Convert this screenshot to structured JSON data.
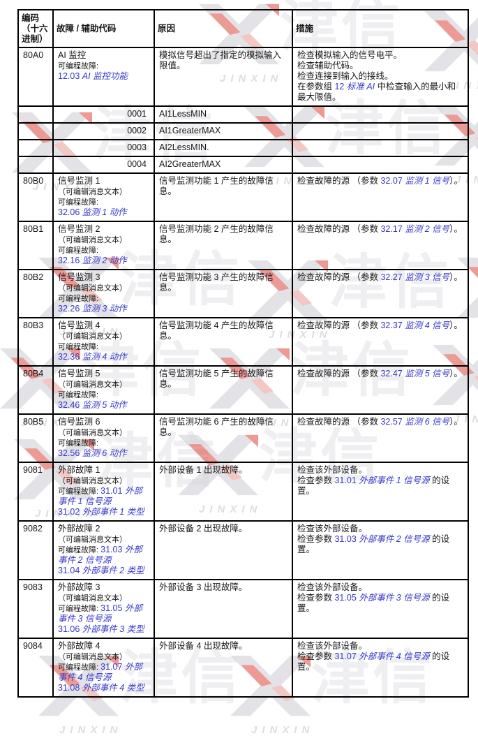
{
  "watermark": {
    "brand_cn": "津信",
    "brand_en": "JINXIN",
    "accent_red": "#e0473d",
    "logo_gray": "#cdcdd4"
  },
  "colors": {
    "link_blue": "#3637ce",
    "text": "#161616",
    "border": "#000000",
    "page_background": "#ffffff"
  },
  "table": {
    "headers": [
      "编码\n（十六\n进制）",
      "故障 / 辅助代码",
      "原因",
      "措施"
    ],
    "rows": [
      {
        "type": "fault",
        "code": "80A0",
        "fault": [
          {
            "t": "AI 监控\n",
            "s": "p"
          },
          {
            "t": "可编程故障:\n",
            "s": "sm"
          },
          {
            "t": "12.03 ",
            "s": "n"
          },
          {
            "t": "AI 监控功能",
            "s": "i"
          }
        ],
        "cause": [
          {
            "t": "模拟信号超出了指定的模拟输入限值。",
            "s": "p"
          }
        ],
        "action": [
          {
            "t": "检查模拟输入的信号电平。\n检查辅助代码。\n检查连接到输入的接线。\n在参数组 ",
            "s": "p"
          },
          {
            "t": "12 ",
            "s": "n"
          },
          {
            "t": "标准 AI",
            "s": "i"
          },
          {
            "t": " 中检查输入的最小和最大限值。",
            "s": "p"
          }
        ]
      },
      {
        "type": "aux",
        "code": "0001",
        "name": "AI1LessMIN"
      },
      {
        "type": "aux",
        "code": "0002",
        "name": "AI1GreaterMAX"
      },
      {
        "type": "aux",
        "code": "0003",
        "name": "AI2LessMIN."
      },
      {
        "type": "aux",
        "code": "0004",
        "name": "AI2GreaterMAX"
      },
      {
        "type": "fault",
        "code": "80B0",
        "fault": [
          {
            "t": "信号监测 1\n",
            "s": "p"
          },
          {
            "t": "（可编辑消息文本）\n可编程故障:\n",
            "s": "sm"
          },
          {
            "t": "32.06 ",
            "s": "n"
          },
          {
            "t": "监测 1 动作",
            "s": "i"
          }
        ],
        "cause": [
          {
            "t": "信号监测功能 1 产生的故障信息。",
            "s": "p"
          }
        ],
        "action": [
          {
            "t": "检查故障的源 （参数 ",
            "s": "p"
          },
          {
            "t": "32.07 ",
            "s": "n"
          },
          {
            "t": "监测 1 信号",
            "s": "i"
          },
          {
            "t": "）。",
            "s": "p"
          }
        ]
      },
      {
        "type": "fault",
        "code": "80B1",
        "fault": [
          {
            "t": "信号监测 2\n",
            "s": "p"
          },
          {
            "t": "（可编辑消息文本）\n可编程故障:\n",
            "s": "sm"
          },
          {
            "t": "32.16 ",
            "s": "n"
          },
          {
            "t": "监测 2 动作",
            "s": "i"
          }
        ],
        "cause": [
          {
            "t": "信号监测功能 2 产生的故障信息。",
            "s": "p"
          }
        ],
        "action": [
          {
            "t": "检查故障的源 （参数 ",
            "s": "p"
          },
          {
            "t": "32.17 ",
            "s": "n"
          },
          {
            "t": "监测 2 信号",
            "s": "i"
          },
          {
            "t": "）。",
            "s": "p"
          }
        ]
      },
      {
        "type": "fault",
        "code": "80B2",
        "fault": [
          {
            "t": "信号监测 3\n",
            "s": "p"
          },
          {
            "t": "（可编辑消息文本）\n可编程故障:\n",
            "s": "sm"
          },
          {
            "t": "32.26 ",
            "s": "n"
          },
          {
            "t": "监测 3 动作",
            "s": "i"
          }
        ],
        "cause": [
          {
            "t": "信号监测功能 3 产生的故障信息。",
            "s": "p"
          }
        ],
        "action": [
          {
            "t": "检查故障的源 （参数 ",
            "s": "p"
          },
          {
            "t": "32.27 ",
            "s": "n"
          },
          {
            "t": "监测 3 信号",
            "s": "i"
          },
          {
            "t": "）。",
            "s": "p"
          }
        ]
      },
      {
        "type": "fault",
        "code": "80B3",
        "fault": [
          {
            "t": "信号监测 4\n",
            "s": "p"
          },
          {
            "t": "（可编辑消息文本）\n可编程故障:\n",
            "s": "sm"
          },
          {
            "t": "32.36 ",
            "s": "n"
          },
          {
            "t": "监测 4 动作",
            "s": "i"
          }
        ],
        "cause": [
          {
            "t": "信号监测功能 4 产生的故障信息。",
            "s": "p"
          }
        ],
        "action": [
          {
            "t": "检查故障的源 （参数 ",
            "s": "p"
          },
          {
            "t": "32.37 ",
            "s": "n"
          },
          {
            "t": "监测 4 信号",
            "s": "i"
          },
          {
            "t": "）。",
            "s": "p"
          }
        ]
      },
      {
        "type": "fault",
        "code": "80B4",
        "fault": [
          {
            "t": "信号监测 5\n",
            "s": "p"
          },
          {
            "t": "（可编辑消息文本）\n可编程故障:\n",
            "s": "sm"
          },
          {
            "t": "32.46 ",
            "s": "n"
          },
          {
            "t": "监测 5 动作",
            "s": "i"
          }
        ],
        "cause": [
          {
            "t": "信号监测功能 5 产生的故障信息。",
            "s": "p"
          }
        ],
        "action": [
          {
            "t": "检查故障的源 （参数 ",
            "s": "p"
          },
          {
            "t": "32.47 ",
            "s": "n"
          },
          {
            "t": "监测 5 信号",
            "s": "i"
          },
          {
            "t": "）。",
            "s": "p"
          }
        ]
      },
      {
        "type": "fault",
        "code": "80B5",
        "fault": [
          {
            "t": "信号监测 6\n",
            "s": "p"
          },
          {
            "t": "（可编辑消息文本）\n可编程故障:\n",
            "s": "sm"
          },
          {
            "t": "32.56 ",
            "s": "n"
          },
          {
            "t": "监测 6 动作",
            "s": "i"
          }
        ],
        "cause": [
          {
            "t": "信号监测功能 6 产生的故障信息。",
            "s": "p"
          }
        ],
        "action": [
          {
            "t": "检查故障的源 （参数 ",
            "s": "p"
          },
          {
            "t": "32.57 ",
            "s": "n"
          },
          {
            "t": "监测 6 信号",
            "s": "i"
          },
          {
            "t": "）。",
            "s": "p"
          }
        ]
      },
      {
        "type": "fault",
        "code": "9081",
        "fault": [
          {
            "t": "外部故障 1\n",
            "s": "p"
          },
          {
            "t": "（可编辑消息文本）\n可编程故障: ",
            "s": "sm"
          },
          {
            "t": "31.01 ",
            "s": "n"
          },
          {
            "t": "外部事件 1 信号源",
            "s": "i"
          },
          {
            "t": "\n",
            "s": "p"
          },
          {
            "t": "31.02 ",
            "s": "n"
          },
          {
            "t": "外部事件 1 类型",
            "s": "i"
          }
        ],
        "cause": [
          {
            "t": "外部设备 1 出现故障。",
            "s": "p"
          }
        ],
        "action": [
          {
            "t": "检查该外部设备。\n检查参数 ",
            "s": "p"
          },
          {
            "t": "31.01 ",
            "s": "n"
          },
          {
            "t": "外部事件 1 信号源",
            "s": "i"
          },
          {
            "t": " 的设置。",
            "s": "p"
          }
        ]
      },
      {
        "type": "fault",
        "code": "9082",
        "fault": [
          {
            "t": "外部故障 2\n",
            "s": "p"
          },
          {
            "t": "（可编辑消息文本）\n可编程故障: ",
            "s": "sm"
          },
          {
            "t": "31.03 ",
            "s": "n"
          },
          {
            "t": "外部事件 2 信号源",
            "s": "i"
          },
          {
            "t": "\n",
            "s": "p"
          },
          {
            "t": "31.04 ",
            "s": "n"
          },
          {
            "t": "外部事件 2 类型",
            "s": "i"
          }
        ],
        "cause": [
          {
            "t": "外部设备 2 出现故障。",
            "s": "p"
          }
        ],
        "action": [
          {
            "t": "检查该外部设备。\n检查参数 ",
            "s": "p"
          },
          {
            "t": "31.03 ",
            "s": "n"
          },
          {
            "t": "外部事件 2 信号源",
            "s": "i"
          },
          {
            "t": " 的设置。",
            "s": "p"
          }
        ]
      },
      {
        "type": "fault",
        "code": "9083",
        "fault": [
          {
            "t": "外部故障 3\n",
            "s": "p"
          },
          {
            "t": "（可编辑消息文本）\n可编程故障: ",
            "s": "sm"
          },
          {
            "t": "31.05 ",
            "s": "n"
          },
          {
            "t": "外部事件 3 信号源",
            "s": "i"
          },
          {
            "t": "\n",
            "s": "p"
          },
          {
            "t": "31.06 ",
            "s": "n"
          },
          {
            "t": "外部事件 3 类型",
            "s": "i"
          }
        ],
        "cause": [
          {
            "t": "外部设备 3 出现故障。",
            "s": "p"
          }
        ],
        "action": [
          {
            "t": "检查该外部设备。\n检查参数 ",
            "s": "p"
          },
          {
            "t": "31.05 ",
            "s": "n"
          },
          {
            "t": "外部事件 3 信号源",
            "s": "i"
          },
          {
            "t": " 的设置。",
            "s": "p"
          }
        ]
      },
      {
        "type": "fault",
        "code": "9084",
        "fault": [
          {
            "t": "外部故障 4\n",
            "s": "p"
          },
          {
            "t": "（可编辑消息文本）\n可编程故障: ",
            "s": "sm"
          },
          {
            "t": "31.07 ",
            "s": "n"
          },
          {
            "t": "外部事件 4 信号源",
            "s": "i"
          },
          {
            "t": "\n",
            "s": "p"
          },
          {
            "t": "31.08 ",
            "s": "n"
          },
          {
            "t": "外部事件 4 类型",
            "s": "i"
          }
        ],
        "cause": [
          {
            "t": "外部设备 4 出现故障。",
            "s": "p"
          }
        ],
        "action": [
          {
            "t": "检查该外部设备。\n检查参数 ",
            "s": "p"
          },
          {
            "t": "31.07 ",
            "s": "n"
          },
          {
            "t": "外部事件 4 信号源",
            "s": "i"
          },
          {
            "t": " 的设置。",
            "s": "p"
          }
        ]
      }
    ]
  }
}
